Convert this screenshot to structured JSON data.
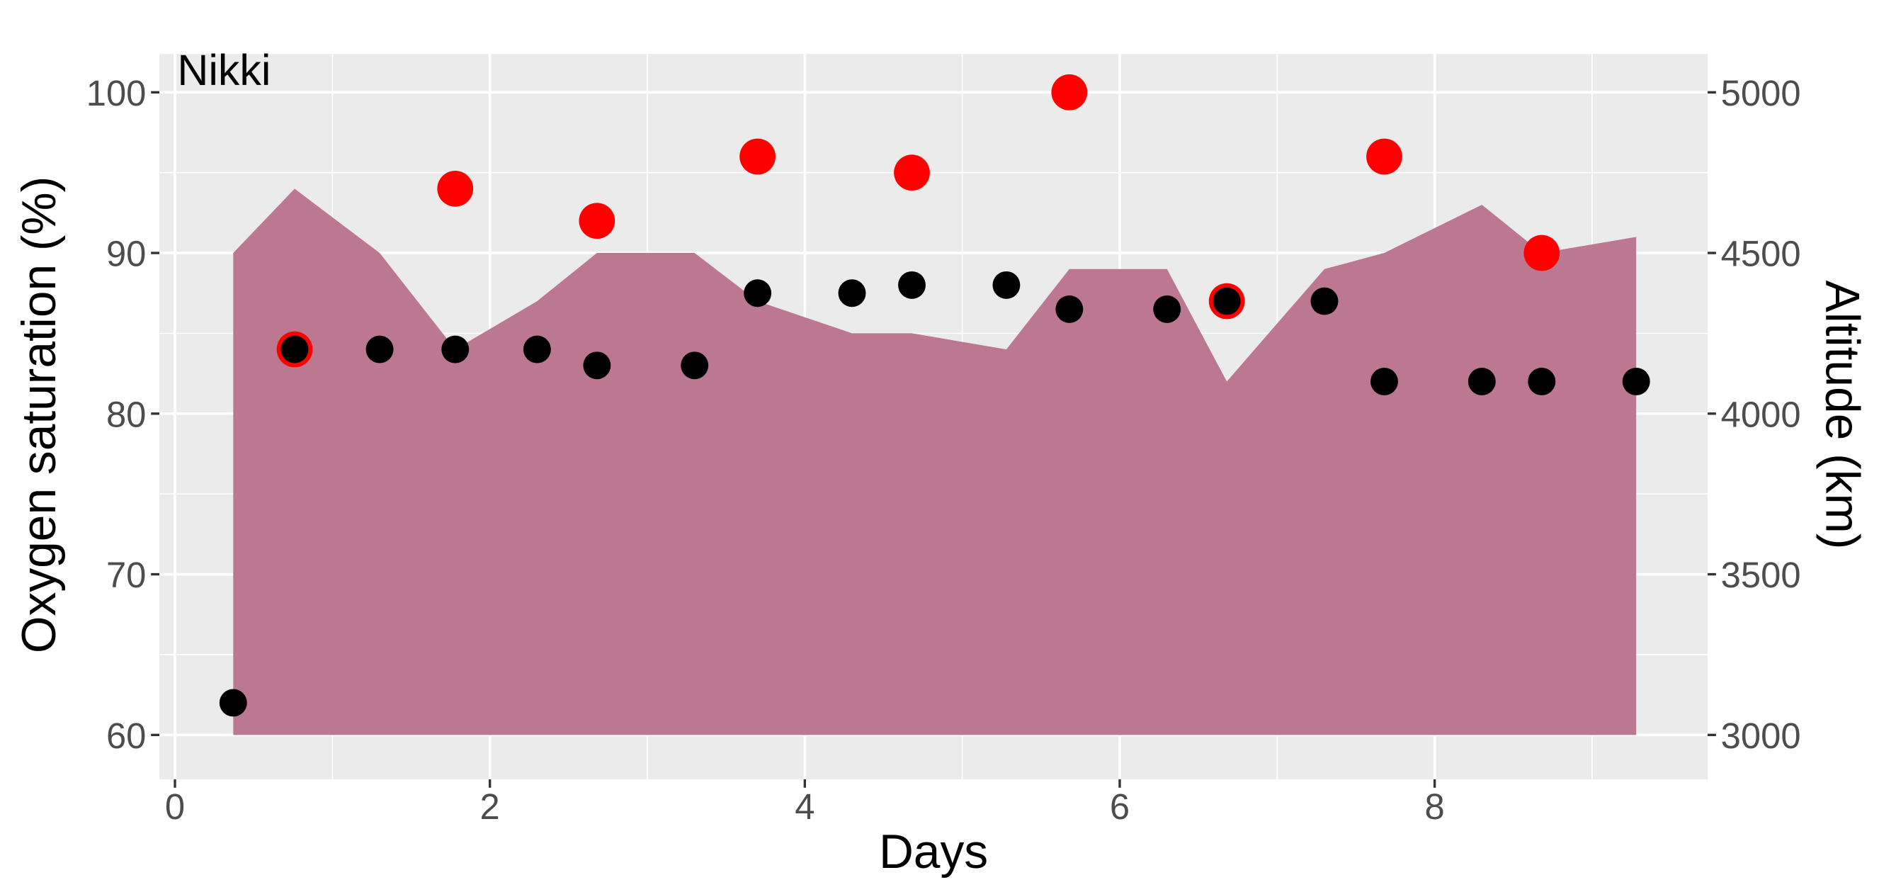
{
  "chart_data": {
    "type": "scatter",
    "title": "",
    "annotation": "Nikki",
    "xlabel": "Days",
    "ylabel": "Oxygen saturation (%)",
    "ylabel_right": "Altitude (km)",
    "xlim": [
      -0.1,
      9.65
    ],
    "ylim": [
      58,
      104
    ],
    "ylim_right": [
      2900,
      5200
    ],
    "x_ticks": [
      "0",
      "2",
      "4",
      "6",
      "8"
    ],
    "y_ticks": [
      "60",
      "70",
      "80",
      "90",
      "100"
    ],
    "y_ticks_right": [
      "3000",
      "3500",
      "4000",
      "4500",
      "5000"
    ],
    "grid": true,
    "series": [
      {
        "name": "Altitude",
        "type": "area",
        "color": "#BC7891",
        "axis": "right",
        "x": [
          0.37,
          0.76,
          1.3,
          1.78,
          2.3,
          2.68,
          3.3,
          3.7,
          4.3,
          4.68,
          5.28,
          5.68,
          6.3,
          6.68,
          7.3,
          7.68,
          8.3,
          8.68,
          9.28
        ],
        "y": [
          4500,
          4700,
          4500,
          4200,
          4350,
          4500,
          4500,
          4350,
          4250,
          4250,
          4200,
          4450,
          4450,
          4100,
          4450,
          4500,
          4650,
          4500,
          4550
        ]
      },
      {
        "name": "Oxygen saturation (red)",
        "type": "scatter",
        "color": "#FF0000",
        "x": [
          0.76,
          1.78,
          2.68,
          3.7,
          4.68,
          5.68,
          6.68,
          7.68,
          8.68
        ],
        "y": [
          84,
          94,
          92,
          96,
          95,
          100,
          87,
          96,
          90
        ]
      },
      {
        "name": "Oxygen saturation (black)",
        "type": "scatter",
        "color": "#000000",
        "x": [
          0.37,
          0.76,
          1.3,
          1.78,
          2.3,
          2.68,
          3.3,
          3.7,
          4.3,
          4.68,
          5.28,
          5.68,
          6.3,
          6.68,
          7.3,
          7.68,
          8.3,
          8.68,
          9.28
        ],
        "y": [
          62,
          84,
          84,
          84,
          84,
          83,
          83,
          87.5,
          87.5,
          88,
          88,
          86.5,
          86.5,
          87,
          87,
          82,
          82,
          82,
          82
        ]
      }
    ]
  }
}
